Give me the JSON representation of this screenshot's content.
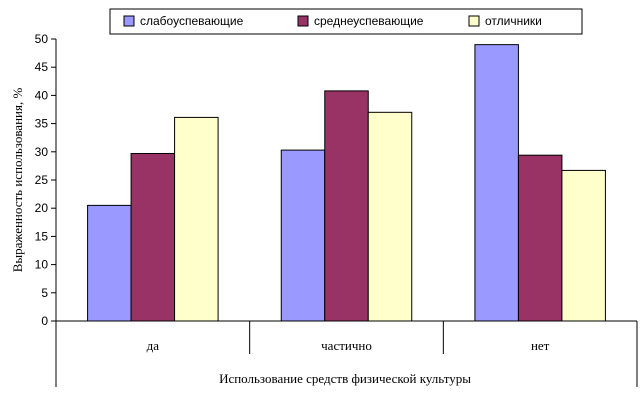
{
  "chart_data": {
    "type": "bar",
    "categories": [
      "да",
      "частично",
      "нет"
    ],
    "series": [
      {
        "name": "слабоуспевающие",
        "values": [
          20.5,
          30.3,
          49.0
        ],
        "color": "#9999ff"
      },
      {
        "name": "среднеуспевающие",
        "values": [
          29.7,
          40.8,
          29.4
        ],
        "color": "#993366"
      },
      {
        "name": "отличники",
        "values": [
          36.1,
          37.0,
          26.7
        ],
        "color": "#ffffcc"
      }
    ],
    "title": "",
    "xlabel": "Использование средств физической культуры",
    "ylabel": "Выраженность использования, %",
    "ylim": [
      0,
      50
    ],
    "yticks": [
      0,
      5,
      10,
      15,
      20,
      25,
      30,
      35,
      40,
      45,
      50
    ],
    "grid": false,
    "legend_position": "top"
  }
}
